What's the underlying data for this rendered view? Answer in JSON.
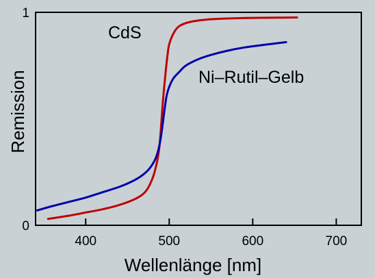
{
  "chart_data": {
    "type": "line",
    "xlabel": "Wellenlänge [nm]",
    "ylabel": "Remission",
    "xlim": [
      340,
      730
    ],
    "ylim": [
      0,
      1
    ],
    "x_ticks": [
      400,
      500,
      600,
      700
    ],
    "x_tick_labels": [
      "400",
      "500",
      "600",
      "700"
    ],
    "y_ticks": [
      0,
      1
    ],
    "y_tick_labels": [
      "0",
      "1"
    ],
    "grid": false,
    "legend": "inline labels",
    "background_color": "#c9d1d5",
    "series": [
      {
        "name": "CdS",
        "color": "#c00000",
        "points": [
          [
            355,
            0.03
          ],
          [
            380,
            0.045
          ],
          [
            400,
            0.06
          ],
          [
            420,
            0.075
          ],
          [
            440,
            0.095
          ],
          [
            460,
            0.125
          ],
          [
            472,
            0.16
          ],
          [
            480,
            0.22
          ],
          [
            485,
            0.29
          ],
          [
            488,
            0.36
          ],
          [
            490,
            0.45
          ],
          [
            492,
            0.56
          ],
          [
            494,
            0.65
          ],
          [
            496,
            0.73
          ],
          [
            498,
            0.8
          ],
          [
            500,
            0.85
          ],
          [
            505,
            0.9
          ],
          [
            512,
            0.935
          ],
          [
            525,
            0.955
          ],
          [
            545,
            0.966
          ],
          [
            570,
            0.971
          ],
          [
            600,
            0.974
          ],
          [
            630,
            0.975
          ],
          [
            653,
            0.976
          ]
        ]
      },
      {
        "name": "Ni–Rutil–Gelb",
        "color": "#0000aa",
        "points": [
          [
            342,
            0.07
          ],
          [
            360,
            0.09
          ],
          [
            380,
            0.11
          ],
          [
            400,
            0.13
          ],
          [
            420,
            0.155
          ],
          [
            440,
            0.18
          ],
          [
            455,
            0.205
          ],
          [
            466,
            0.23
          ],
          [
            475,
            0.26
          ],
          [
            482,
            0.3
          ],
          [
            486,
            0.34
          ],
          [
            489,
            0.39
          ],
          [
            491,
            0.44
          ],
          [
            493,
            0.5
          ],
          [
            495,
            0.56
          ],
          [
            497,
            0.61
          ],
          [
            500,
            0.65
          ],
          [
            505,
            0.69
          ],
          [
            512,
            0.72
          ],
          [
            520,
            0.75
          ],
          [
            535,
            0.78
          ],
          [
            550,
            0.8
          ],
          [
            570,
            0.82
          ],
          [
            590,
            0.835
          ],
          [
            615,
            0.848
          ],
          [
            640,
            0.86
          ]
        ]
      }
    ]
  }
}
